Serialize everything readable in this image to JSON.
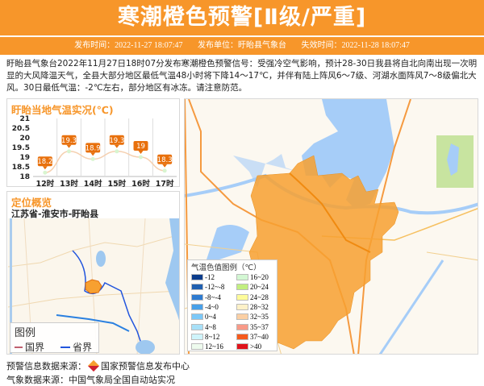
{
  "header": {
    "title": "寒潮橙色预警[Ⅱ级/严重]",
    "issue_time": "发布时间：2022-11-27 18:07:47",
    "issuer": "发布单位：盱眙县气象台",
    "expire_time": "失效时间：2022-11-28 18:07:47"
  },
  "description": "盱眙县气象台2022年11月27日18时07分发布寒潮橙色预警信号：受强冷空气影响，预计28-30日我县将自北向南出现一次明显的大风降温天气，全县大部分地区最低气温48小时将下降14～17℃，并伴有陆上阵风6～7级、河湖水面阵风7～8级偏北大风。30日最低气温：-2℃左右，部分地区有冰冻。请注意防范。",
  "chart_panel": {
    "title": "盱眙当地气温实况(℃)"
  },
  "chart_data": {
    "type": "line",
    "title": "盱眙当地气温实况(℃)",
    "categories": [
      "12时",
      "13时",
      "14时",
      "15时",
      "16时",
      "17时"
    ],
    "values": [
      18.2,
      19.3,
      18.9,
      19.3,
      19,
      18.3
    ],
    "yticks": [
      "21",
      "20.5",
      "20",
      "19.5",
      "19",
      "18.5",
      "18"
    ],
    "ylim": [
      18,
      21
    ],
    "grid": "vertical",
    "line_color": "#f5d0b0",
    "label_color": "#e8700c"
  },
  "location_panel": {
    "title": "定位概览",
    "path": "江苏省-淮安市-盱眙县"
  },
  "map_legend": {
    "title": "图例",
    "country": "国界",
    "province": "省界"
  },
  "temp_legend": {
    "title": "气温色值图例（℃）",
    "items": [
      {
        "label": "-12",
        "color": "#0b3c8c"
      },
      {
        "label": "-12~-8",
        "color": "#1f5fb0"
      },
      {
        "label": "-8~-4",
        "color": "#2e7bd0"
      },
      {
        "label": "-4~0",
        "color": "#48a0e8"
      },
      {
        "label": "0~4",
        "color": "#7cc8f8"
      },
      {
        "label": "4~8",
        "color": "#a8e0f8"
      },
      {
        "label": "8~12",
        "color": "#cff4fb"
      },
      {
        "label": "12~16",
        "color": "#eefbee"
      },
      {
        "label": "16~20",
        "color": "#d3f7d3"
      },
      {
        "label": "20~24",
        "color": "#c2ee80"
      },
      {
        "label": "24~28",
        "color": "#fdfb9a"
      },
      {
        "label": "28~32",
        "color": "#fdf1c8"
      },
      {
        "label": "32~35",
        "color": "#fbcfa4"
      },
      {
        "label": "35~37",
        "color": "#f89a88"
      },
      {
        "label": "37~40",
        "color": "#f65a1c"
      },
      {
        "label": ">40",
        "color": "#e0141c"
      }
    ]
  },
  "footer": {
    "source1_label": "预警信息数据来源：",
    "source1_value": "国家预警信息发布中心",
    "source2": "气象数据来源：中国气象局全国自动站实况"
  },
  "colors": {
    "accent": "#f7962a",
    "warning_area": "#f7a030"
  }
}
